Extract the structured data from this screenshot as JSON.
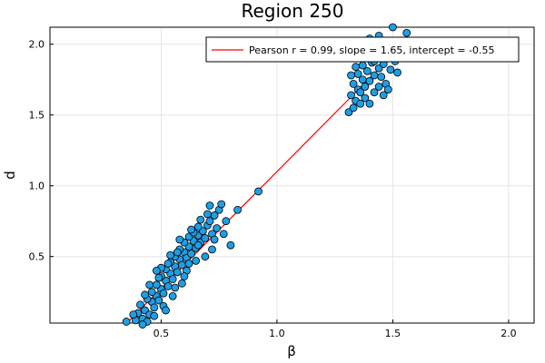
{
  "chart_data": {
    "type": "scatter",
    "title": "Region 250",
    "xlabel": "β",
    "ylabel": "d",
    "xlim": [
      0.02,
      2.11
    ],
    "ylim": [
      0.03,
      2.12
    ],
    "xticks": [
      0.5,
      1.0,
      1.5,
      2.0
    ],
    "xtick_labels": [
      "0.5",
      "1.0",
      "1.5",
      "2.0"
    ],
    "yticks": [
      0.5,
      1.0,
      1.5,
      2.0
    ],
    "ytick_labels": [
      "0.5",
      "1.0",
      "1.5",
      "2.0"
    ],
    "grid": true,
    "legend_position": "top-right",
    "fit_line": {
      "label": "Pearson r = 0.99, slope = 1.65, intercept = -0.55",
      "slope": 1.65,
      "intercept": -0.55,
      "x_range": [
        0.36,
        1.55
      ],
      "color": "#ff0000"
    },
    "scatter_color": "#1f9ee6",
    "points": [
      [
        0.35,
        0.04
      ],
      [
        0.39,
        0.05
      ],
      [
        0.42,
        0.06
      ],
      [
        0.44,
        0.04
      ],
      [
        0.4,
        0.1
      ],
      [
        0.43,
        0.12
      ],
      [
        0.41,
        0.16
      ],
      [
        0.45,
        0.09
      ],
      [
        0.46,
        0.18
      ],
      [
        0.44,
        0.2
      ],
      [
        0.47,
        0.14
      ],
      [
        0.48,
        0.22
      ],
      [
        0.46,
        0.25
      ],
      [
        0.49,
        0.19
      ],
      [
        0.5,
        0.27
      ],
      [
        0.48,
        0.3
      ],
      [
        0.51,
        0.24
      ],
      [
        0.52,
        0.33
      ],
      [
        0.5,
        0.36
      ],
      [
        0.53,
        0.29
      ],
      [
        0.54,
        0.38
      ],
      [
        0.52,
        0.41
      ],
      [
        0.55,
        0.34
      ],
      [
        0.56,
        0.43
      ],
      [
        0.54,
        0.46
      ],
      [
        0.57,
        0.39
      ],
      [
        0.58,
        0.48
      ],
      [
        0.56,
        0.5
      ],
      [
        0.59,
        0.44
      ],
      [
        0.6,
        0.53
      ],
      [
        0.58,
        0.55
      ],
      [
        0.61,
        0.49
      ],
      [
        0.62,
        0.57
      ],
      [
        0.6,
        0.6
      ],
      [
        0.63,
        0.52
      ],
      [
        0.64,
        0.61
      ],
      [
        0.62,
        0.64
      ],
      [
        0.65,
        0.56
      ],
      [
        0.66,
        0.65
      ],
      [
        0.64,
        0.67
      ],
      [
        0.67,
        0.6
      ],
      [
        0.68,
        0.68
      ],
      [
        0.66,
        0.71
      ],
      [
        0.69,
        0.63
      ],
      [
        0.7,
        0.72
      ],
      [
        0.71,
        0.75
      ],
      [
        0.72,
        0.66
      ],
      [
        0.73,
        0.79
      ],
      [
        0.74,
        0.7
      ],
      [
        0.75,
        0.83
      ],
      [
        0.71,
        0.86
      ],
      [
        0.76,
        0.87
      ],
      [
        0.78,
        0.75
      ],
      [
        0.73,
        0.62
      ],
      [
        0.77,
        0.66
      ],
      [
        0.8,
        0.58
      ],
      [
        0.83,
        0.83
      ],
      [
        0.92,
        0.96
      ],
      [
        0.49,
        0.35
      ],
      [
        0.53,
        0.45
      ],
      [
        0.57,
        0.53
      ],
      [
        0.61,
        0.4
      ],
      [
        0.65,
        0.47
      ],
      [
        0.55,
        0.22
      ],
      [
        0.59,
        0.31
      ],
      [
        0.47,
        0.08
      ],
      [
        0.51,
        0.15
      ],
      [
        0.43,
        0.23
      ],
      [
        0.45,
        0.3
      ],
      [
        0.5,
        0.42
      ],
      [
        0.54,
        0.51
      ],
      [
        0.58,
        0.62
      ],
      [
        0.63,
        0.69
      ],
      [
        0.67,
        0.76
      ],
      [
        0.69,
        0.5
      ],
      [
        0.72,
        0.55
      ],
      [
        0.52,
        0.12
      ],
      [
        0.48,
        0.4
      ],
      [
        0.6,
        0.36
      ],
      [
        0.42,
        0.02
      ],
      [
        0.38,
        0.09
      ],
      [
        0.66,
        0.58
      ],
      [
        0.62,
        0.45
      ],
      [
        0.56,
        0.28
      ],
      [
        0.7,
        0.8
      ],
      [
        1.31,
        1.52
      ],
      [
        1.33,
        1.55
      ],
      [
        1.32,
        1.64
      ],
      [
        1.34,
        1.6
      ],
      [
        1.35,
        1.68
      ],
      [
        1.33,
        1.72
      ],
      [
        1.36,
        1.66
      ],
      [
        1.37,
        1.75
      ],
      [
        1.35,
        1.79
      ],
      [
        1.38,
        1.7
      ],
      [
        1.39,
        1.81
      ],
      [
        1.37,
        1.85
      ],
      [
        1.4,
        1.74
      ],
      [
        1.41,
        1.87
      ],
      [
        1.39,
        1.9
      ],
      [
        1.42,
        1.78
      ],
      [
        1.43,
        1.92
      ],
      [
        1.41,
        1.95
      ],
      [
        1.44,
        1.83
      ],
      [
        1.45,
        1.98
      ],
      [
        1.43,
        2.0
      ],
      [
        1.46,
        1.86
      ],
      [
        1.47,
        1.94
      ],
      [
        1.45,
        1.77
      ],
      [
        1.48,
        1.9
      ],
      [
        1.49,
        1.82
      ],
      [
        1.5,
        1.97
      ],
      [
        1.51,
        1.88
      ],
      [
        1.52,
        1.8
      ],
      [
        1.5,
        2.12
      ],
      [
        1.56,
        2.08
      ],
      [
        1.53,
        2.02
      ],
      [
        1.38,
        1.62
      ],
      [
        1.4,
        1.58
      ],
      [
        1.42,
        1.66
      ],
      [
        1.44,
        1.7
      ],
      [
        1.46,
        1.64
      ],
      [
        1.36,
        1.58
      ],
      [
        1.34,
        1.84
      ],
      [
        1.47,
        1.72
      ],
      [
        1.4,
        2.04
      ],
      [
        1.44,
        2.06
      ],
      [
        1.48,
        1.68
      ],
      [
        1.42,
        1.88
      ],
      [
        1.38,
        1.93
      ],
      [
        1.32,
        1.78
      ],
      [
        1.46,
        2.01
      ],
      [
        1.36,
        1.98
      ]
    ]
  }
}
